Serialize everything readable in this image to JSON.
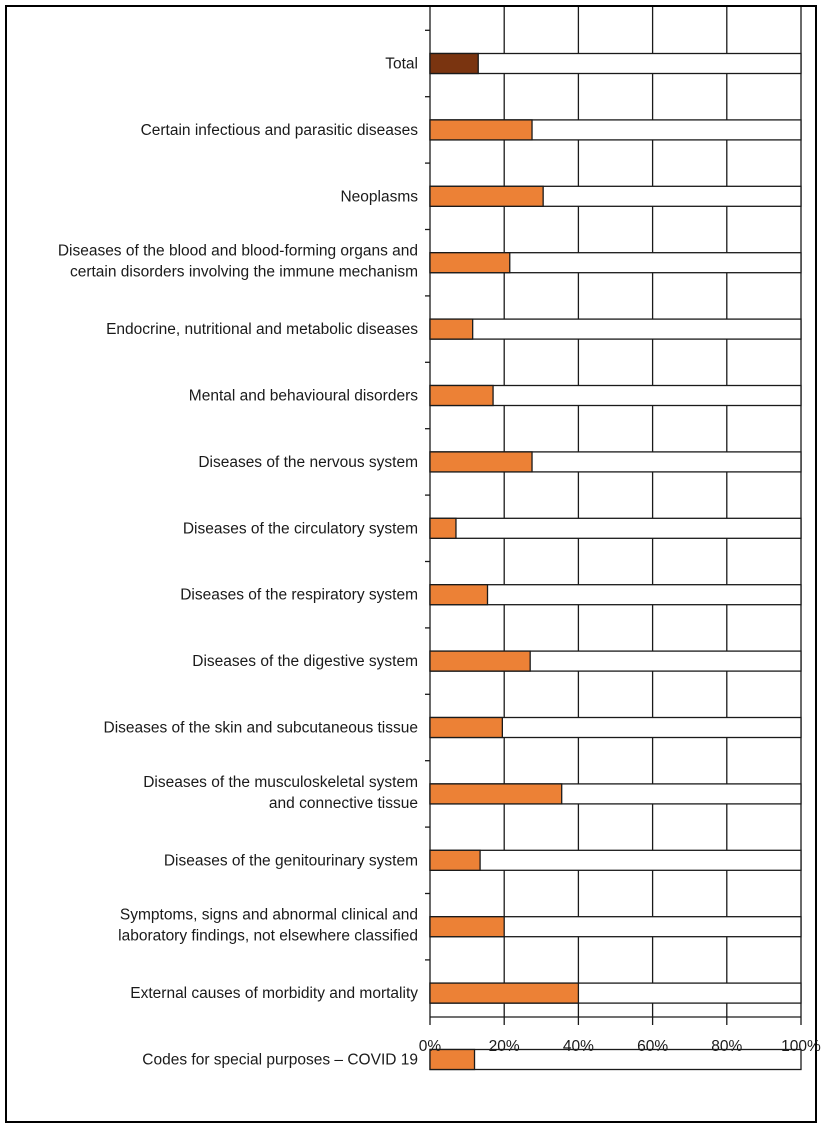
{
  "chart_data": {
    "type": "bar",
    "orientation": "horizontal",
    "stacked_to_100": true,
    "categories": [
      [
        "Total"
      ],
      [
        "Certain infectious and parasitic diseases"
      ],
      [
        "Neoplasms"
      ],
      [
        "Diseases of the blood and blood-forming organs and",
        "certain disorders involving the immune mechanism"
      ],
      [
        "Endocrine, nutritional and metabolic diseases"
      ],
      [
        "Mental and behavioural disorders"
      ],
      [
        "Diseases of the nervous system"
      ],
      [
        "Diseases of the circulatory system"
      ],
      [
        "Diseases of the respiratory system"
      ],
      [
        "Diseases of the digestive system"
      ],
      [
        "Diseases of the skin and subcutaneous tissue"
      ],
      [
        "Diseases of the musculoskeletal system",
        "and connective tissue"
      ],
      [
        "Diseases of the genitourinary system"
      ],
      [
        "Symptoms, signs and abnormal clinical and",
        "laboratory findings, not elsewhere classified"
      ],
      [
        "External causes of morbidity and mortality"
      ],
      [
        "Codes for special purposes – COVID 19"
      ]
    ],
    "values": [
      13,
      27.5,
      30.5,
      21.5,
      11.5,
      17,
      27.5,
      7,
      15.5,
      27,
      19.5,
      35.5,
      13.5,
      20,
      40,
      12
    ],
    "xlim": [
      0,
      100
    ],
    "xticks": [
      "0%",
      "20%",
      "40%",
      "60%",
      "80%",
      "100%"
    ],
    "grid": true,
    "title": "",
    "xlabel": "",
    "ylabel": "",
    "colors": {
      "total_bar": "#7a3410",
      "bar": "#ec8136",
      "remainder": "#ffffff",
      "outline": "#1a1a1a"
    }
  }
}
